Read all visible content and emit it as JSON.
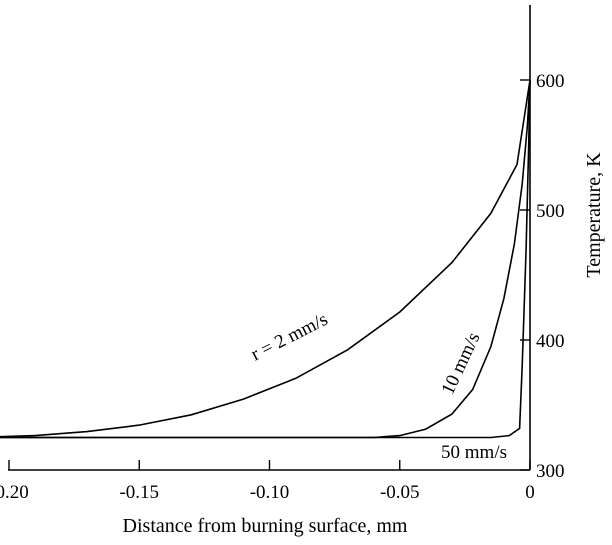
{
  "chart_data": {
    "type": "line",
    "xlabel": "Distance from burning surface, mm",
    "ylabel": "Temperature, K",
    "xlim": [
      -0.215,
      0.003
    ],
    "ylim": [
      300,
      660
    ],
    "x_ticks": [
      -0.2,
      -0.15,
      -0.1,
      -0.05,
      0
    ],
    "x_tick_labels": [
      "-0.20",
      "-0.15",
      "-0.10",
      "-0.05",
      "0"
    ],
    "y_ticks": [
      300,
      400,
      500,
      600
    ],
    "y_tick_labels": [
      "300",
      "400",
      "500",
      "600"
    ],
    "y_axis_position": "right",
    "grid": false,
    "series": [
      {
        "name": "r = 2 mm/s",
        "points": [
          [
            -0.215,
            325
          ],
          [
            -0.19,
            326.5
          ],
          [
            -0.17,
            329.5
          ],
          [
            -0.15,
            334.5
          ],
          [
            -0.13,
            342.5
          ],
          [
            -0.11,
            354.5
          ],
          [
            -0.09,
            370.5
          ],
          [
            -0.07,
            392.5
          ],
          [
            -0.05,
            421.5
          ],
          [
            -0.03,
            459.5
          ],
          [
            -0.015,
            497.5
          ],
          [
            -0.005,
            535
          ],
          [
            0,
            600
          ]
        ]
      },
      {
        "name": "10 mm/s",
        "points": [
          [
            -0.215,
            325
          ],
          [
            -0.06,
            325
          ],
          [
            -0.05,
            326.5
          ],
          [
            -0.04,
            331.5
          ],
          [
            -0.03,
            343
          ],
          [
            -0.022,
            362
          ],
          [
            -0.015,
            395
          ],
          [
            -0.01,
            432
          ],
          [
            -0.006,
            474
          ],
          [
            -0.003,
            520
          ],
          [
            -0.001,
            565
          ],
          [
            0,
            600
          ]
        ]
      },
      {
        "name": "50 mm/s",
        "points": [
          [
            -0.215,
            325
          ],
          [
            -0.015,
            325
          ],
          [
            -0.008,
            326.5
          ],
          [
            -0.004,
            332
          ],
          [
            -0.003,
            380
          ],
          [
            -0.0015,
            470
          ],
          [
            -0.0005,
            550
          ],
          [
            0,
            600
          ]
        ]
      }
    ]
  }
}
